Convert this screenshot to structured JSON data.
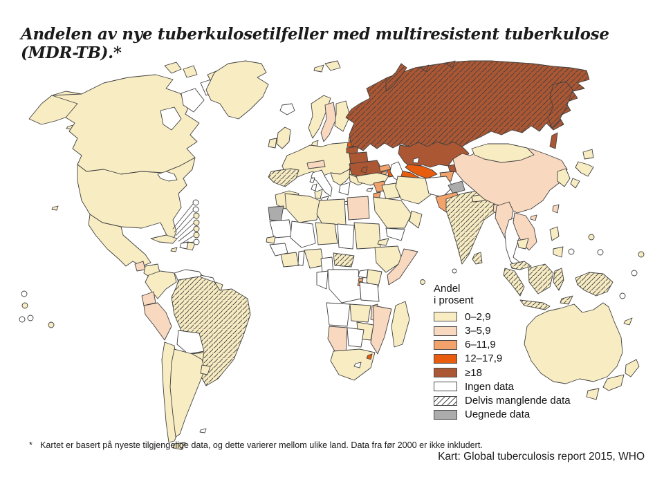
{
  "title": "Andelen av nye tuberkulosetilfeller med multiresistent tuberkulose (MDR-TB).*",
  "legend": {
    "heading_line1": "Andel",
    "heading_line2": "i prosent",
    "items": [
      {
        "label": "0–2,9",
        "swatch": "cream",
        "hatch": false
      },
      {
        "label": "3–5,9",
        "swatch": "peach",
        "hatch": false
      },
      {
        "label": "6–11,9",
        "swatch": "light_orange",
        "hatch": false
      },
      {
        "label": "12–17,9",
        "swatch": "orange",
        "hatch": false
      },
      {
        "label": "≥18",
        "swatch": "brown",
        "hatch": false
      },
      {
        "label": "Ingen data",
        "swatch": "no_data",
        "hatch": false
      },
      {
        "label": "Delvis manglende data",
        "swatch": "no_data",
        "hatch": true
      },
      {
        "label": "Uegnede data",
        "swatch": "unsuitable",
        "hatch": false
      }
    ]
  },
  "footnote_star": "*",
  "footnote_text": "Kartet er basert på nyeste tilgjengelige data, og dette varierer mellom ulike land. Data fra før 2000 er ikke inkludert.",
  "source": "Kart: Global tuberculosis report 2015, WHO",
  "palette": {
    "cream": "#F8ECC3",
    "peach": "#F8D8BF",
    "light_orange": "#F1A36B",
    "orange": "#E85C0E",
    "brown": "#AC5733",
    "no_data": "#FFFFFF",
    "unsuitable": "#ACACAC",
    "border": "#3F3F3F",
    "hatch_line": "#4A4A4A",
    "hatch_line_brown": "#6E2F12"
  },
  "chart_data": {
    "type": "choropleth-map",
    "title": "Andelen av nye tuberkulosetilfeller med multiresistent tuberkulose (MDR-TB)",
    "unit": "prosent av nye tuberkulosetilfeller",
    "classes": [
      "0–2,9",
      "3–5,9",
      "6–11,9",
      "12–17,9",
      "≥18",
      "Ingen data",
      "Delvis manglende data",
      "Uegnede data"
    ],
    "regions": [
      {
        "name": "Grønland",
        "class": "0–2,9",
        "hatched": false
      },
      {
        "name": "Island",
        "class": "Ingen data",
        "hatched": false
      },
      {
        "name": "Canada",
        "class": "0–2,9",
        "hatched": false
      },
      {
        "name": "USA",
        "class": "0–2,9",
        "hatched": false
      },
      {
        "name": "Mexico",
        "class": "0–2,9",
        "hatched": false
      },
      {
        "name": "Guatemala",
        "class": "3–5,9",
        "hatched": false
      },
      {
        "name": "Honduras/Nicaragua",
        "class": "0–2,9",
        "hatched": false
      },
      {
        "name": "Panama",
        "class": "Ingen data",
        "hatched": false
      },
      {
        "name": "Cuba",
        "class": "0–2,9",
        "hatched": false
      },
      {
        "name": "Haiti",
        "class": "Ingen data",
        "hatched": false
      },
      {
        "name": "Den dominikanske republikk",
        "class": "0–2,9",
        "hatched": false
      },
      {
        "name": "Colombia",
        "class": "0–2,9",
        "hatched": false
      },
      {
        "name": "Venezuela",
        "class": "Ingen data",
        "hatched": false
      },
      {
        "name": "Guyana/Surinam",
        "class": "Ingen data",
        "hatched": false
      },
      {
        "name": "Fransk Guyana",
        "class": "0–2,9",
        "hatched": false
      },
      {
        "name": "Ecuador",
        "class": "3–5,9",
        "hatched": false
      },
      {
        "name": "Peru",
        "class": "3–5,9",
        "hatched": false
      },
      {
        "name": "Brasil",
        "class": "0–2,9",
        "hatched": true
      },
      {
        "name": "Bolivia",
        "class": "Ingen data",
        "hatched": false
      },
      {
        "name": "Paraguay",
        "class": "0–2,9",
        "hatched": false
      },
      {
        "name": "Chile",
        "class": "0–2,9",
        "hatched": false
      },
      {
        "name": "Argentina",
        "class": "0–2,9",
        "hatched": false
      },
      {
        "name": "Uruguay",
        "class": "0–2,9",
        "hatched": false
      },
      {
        "name": "Storbritannia",
        "class": "0–2,9",
        "hatched": false
      },
      {
        "name": "Irland",
        "class": "0–2,9",
        "hatched": false
      },
      {
        "name": "Norge",
        "class": "0–2,9",
        "hatched": false
      },
      {
        "name": "Sverige",
        "class": "3–5,9",
        "hatched": false
      },
      {
        "name": "Finland",
        "class": "0–2,9",
        "hatched": false
      },
      {
        "name": "Vest- og Sentral-Europa",
        "class": "0–2,9",
        "hatched": false
      },
      {
        "name": "Spania",
        "class": "0–2,9",
        "hatched": true
      },
      {
        "name": "Italia",
        "class": "Ingen data",
        "hatched": false
      },
      {
        "name": "Hellas",
        "class": "Ingen data",
        "hatched": false
      },
      {
        "name": "Sveits/Østerrike",
        "class": "3–5,9",
        "hatched": false
      },
      {
        "name": "Romania",
        "class": "0–2,9",
        "hatched": false
      },
      {
        "name": "Bulgaria",
        "class": "0–2,9",
        "hatched": false
      },
      {
        "name": "Estland",
        "class": "6–11,9",
        "hatched": false
      },
      {
        "name": "Latvia",
        "class": "12–17,9",
        "hatched": false
      },
      {
        "name": "Litauen",
        "class": "≥18",
        "hatched": false
      },
      {
        "name": "Hviterussland",
        "class": "≥18",
        "hatched": false
      },
      {
        "name": "Ukraina",
        "class": "≥18",
        "hatched": false
      },
      {
        "name": "Moldova",
        "class": "≥18",
        "hatched": false
      },
      {
        "name": "Russland",
        "class": "≥18",
        "hatched": true
      },
      {
        "name": "Kasakhstan",
        "class": "≥18",
        "hatched": false
      },
      {
        "name": "Kirgisistan",
        "class": "≥18",
        "hatched": false
      },
      {
        "name": "Usbekistan",
        "class": "12–17,9",
        "hatched": false
      },
      {
        "name": "Turkmenistan",
        "class": "12–17,9",
        "hatched": false
      },
      {
        "name": "Tadsjikistan",
        "class": "6–11,9",
        "hatched": false
      },
      {
        "name": "Georgia",
        "class": "6–11,9",
        "hatched": false
      },
      {
        "name": "Armenia",
        "class": "6–11,9",
        "hatched": false
      },
      {
        "name": "Aserbajdsjan",
        "class": "12–17,9",
        "hatched": false
      },
      {
        "name": "Tyrkia",
        "class": "0–2,9",
        "hatched": false
      },
      {
        "name": "Syria",
        "class": "6–11,9",
        "hatched": false
      },
      {
        "name": "Jordan",
        "class": "6–11,9",
        "hatched": false
      },
      {
        "name": "Irak",
        "class": "0–2,9",
        "hatched": false
      },
      {
        "name": "Iran",
        "class": "0–2,9",
        "hatched": false
      },
      {
        "name": "Saudi-Arabia",
        "class": "0–2,9",
        "hatched": false
      },
      {
        "name": "Jemen",
        "class": "Ingen data",
        "hatched": false
      },
      {
        "name": "Oman",
        "class": "0–2,9",
        "hatched": false
      },
      {
        "name": "Afghanistan",
        "class": "Ingen data",
        "hatched": false
      },
      {
        "name": "Kashmir",
        "class": "Uegnede data",
        "hatched": false
      },
      {
        "name": "Pakistan",
        "class": "6–11,9",
        "hatched": false
      },
      {
        "name": "India",
        "class": "0–2,9",
        "hatched": true
      },
      {
        "name": "Nepal",
        "class": "0–2,9",
        "hatched": false
      },
      {
        "name": "Bangladesh",
        "class": "3–5,9",
        "hatched": false
      },
      {
        "name": "Sri Lanka",
        "class": "0–2,9",
        "hatched": true
      },
      {
        "name": "Kina",
        "class": "3–5,9",
        "hatched": false
      },
      {
        "name": "Mongolia",
        "class": "0–2,9",
        "hatched": false
      },
      {
        "name": "Korea",
        "class": "0–2,9",
        "hatched": false
      },
      {
        "name": "Japan",
        "class": "0–2,9",
        "hatched": false
      },
      {
        "name": "Taiwan",
        "class": "3–5,9",
        "hatched": false
      },
      {
        "name": "Myanmar",
        "class": "3–5,9",
        "hatched": false
      },
      {
        "name": "Thailand",
        "class": "Ingen data",
        "hatched": false
      },
      {
        "name": "Vietnam/Laos",
        "class": "3–5,9",
        "hatched": false
      },
      {
        "name": "Kambodsja",
        "class": "0–2,9",
        "hatched": false
      },
      {
        "name": "Malaysia",
        "class": "0–2,9",
        "hatched": true
      },
      {
        "name": "Indonesia",
        "class": "0–2,9",
        "hatched": true
      },
      {
        "name": "Filippinene",
        "class": "0–2,9",
        "hatched": false
      },
      {
        "name": "Papua Ny-Guinea",
        "class": "0–2,9",
        "hatched": true
      },
      {
        "name": "Australia",
        "class": "0–2,9",
        "hatched": false
      },
      {
        "name": "New Zealand",
        "class": "0–2,9",
        "hatched": false
      },
      {
        "name": "Marokko",
        "class": "0–2,9",
        "hatched": false
      },
      {
        "name": "Vest-Sahara",
        "class": "Uegnede data",
        "hatched": false
      },
      {
        "name": "Algerie",
        "class": "0–2,9",
        "hatched": false
      },
      {
        "name": "Tunisia",
        "class": "0–2,9",
        "hatched": false
      },
      {
        "name": "Libya",
        "class": "0–2,9",
        "hatched": false
      },
      {
        "name": "Egypt",
        "class": "3–5,9",
        "hatched": false
      },
      {
        "name": "Mauritania",
        "class": "Ingen data",
        "hatched": false
      },
      {
        "name": "Mali",
        "class": "Ingen data",
        "hatched": false
      },
      {
        "name": "Senegal",
        "class": "0–2,9",
        "hatched": false
      },
      {
        "name": "Guinea",
        "class": "Ingen data",
        "hatched": false
      },
      {
        "name": "Niger",
        "class": "0–2,9",
        "hatched": false
      },
      {
        "name": "Tsjad",
        "class": "Ingen data",
        "hatched": false
      },
      {
        "name": "Sudan",
        "class": "0–2,9",
        "hatched": false
      },
      {
        "name": "Eritrea",
        "class": "0–2,9",
        "hatched": false
      },
      {
        "name": "Etiopia",
        "class": "0–2,9",
        "hatched": false
      },
      {
        "name": "Somalia",
        "class": "3–5,9",
        "hatched": false
      },
      {
        "name": "Nigeria",
        "class": "0–2,9",
        "hatched": false
      },
      {
        "name": "Ghana/Elfenbenskysten",
        "class": "0–2,9",
        "hatched": false
      },
      {
        "name": "Togo/Benin",
        "class": "Ingen data",
        "hatched": false
      },
      {
        "name": "Kamerun",
        "class": "Ingen data",
        "hatched": false
      },
      {
        "name": "Den sentralafrikanske republikk",
        "class": "0–2,9",
        "hatched": true
      },
      {
        "name": "Gabon/Kongo",
        "class": "Ingen data",
        "hatched": false
      },
      {
        "name": "DR Kongo",
        "class": "Ingen data",
        "hatched": false
      },
      {
        "name": "Uganda",
        "class": "Ingen data",
        "hatched": false
      },
      {
        "name": "Kenya",
        "class": "0–2,9",
        "hatched": false
      },
      {
        "name": "Rwanda/Burundi",
        "class": "6–11,9",
        "hatched": false
      },
      {
        "name": "Tanzania",
        "class": "Ingen data",
        "hatched": false
      },
      {
        "name": "Angola",
        "class": "Ingen data",
        "hatched": false
      },
      {
        "name": "Zambia",
        "class": "0–2,9",
        "hatched": false
      },
      {
        "name": "Malawi",
        "class": "3–5,9",
        "hatched": false
      },
      {
        "name": "Mosambik",
        "class": "3–5,9",
        "hatched": false
      },
      {
        "name": "Zimbabwe",
        "class": "0–2,9",
        "hatched": false
      },
      {
        "name": "Botswana",
        "class": "Ingen data",
        "hatched": false
      },
      {
        "name": "Namibia",
        "class": "3–5,9",
        "hatched": false
      },
      {
        "name": "Sør-Afrika",
        "class": "0–2,9",
        "hatched": false
      },
      {
        "name": "Lesotho",
        "class": "Ingen data",
        "hatched": false
      },
      {
        "name": "Swaziland",
        "class": "6–11,9",
        "hatched": false
      },
      {
        "name": "Madagaskar",
        "class": "0–2,9",
        "hatched": false
      }
    ]
  }
}
